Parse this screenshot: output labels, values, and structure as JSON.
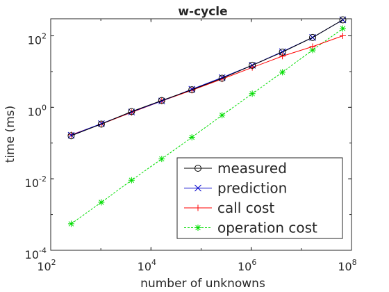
{
  "chart_data": {
    "type": "line",
    "title": "w-cycle",
    "xlabel": "number of unknowns",
    "ylabel": "time (ms)",
    "xscale": "log",
    "yscale": "log",
    "xlim": [
      100,
      100000000
    ],
    "ylim": [
      0.0001,
      300
    ],
    "grid": false,
    "legend_position": "bottom-right",
    "x_ticks": [
      {
        "value": 100,
        "base": "10",
        "exp": "2"
      },
      {
        "value": 10000,
        "base": "10",
        "exp": "4"
      },
      {
        "value": 1000000,
        "base": "10",
        "exp": "6"
      },
      {
        "value": 100000000,
        "base": "10",
        "exp": "8"
      }
    ],
    "y_ticks": [
      {
        "value": 0.0001,
        "base": "10",
        "exp": "-4"
      },
      {
        "value": 0.01,
        "base": "10",
        "exp": "-2"
      },
      {
        "value": 1,
        "base": "10",
        "exp": "0"
      },
      {
        "value": 100,
        "base": "10",
        "exp": "2"
      }
    ],
    "x": [
      256,
      1024,
      4096,
      16384,
      65536,
      262144,
      1048576,
      4194304,
      16777216,
      67108864
    ],
    "series": [
      {
        "name": "measured",
        "color": "#000000",
        "marker": "circle",
        "values": [
          0.16,
          0.34,
          0.76,
          1.55,
          3.1,
          6.5,
          15,
          35,
          90,
          280
        ]
      },
      {
        "name": "prediction",
        "color": "#0000cc",
        "marker": "x",
        "values": [
          0.165,
          0.35,
          0.74,
          1.5,
          3.2,
          6.8,
          15,
          36,
          90,
          280
        ]
      },
      {
        "name": "call cost",
        "color": "#ff0000",
        "marker": "plus",
        "values": [
          0.17,
          0.34,
          0.72,
          1.5,
          3.0,
          6.2,
          13,
          27,
          50,
          100
        ]
      },
      {
        "name": "operation cost",
        "color": "#00dd00",
        "marker": "star",
        "values": [
          0.00055,
          0.0022,
          0.0091,
          0.036,
          0.145,
          0.6,
          2.4,
          9.6,
          40,
          160
        ]
      }
    ]
  }
}
